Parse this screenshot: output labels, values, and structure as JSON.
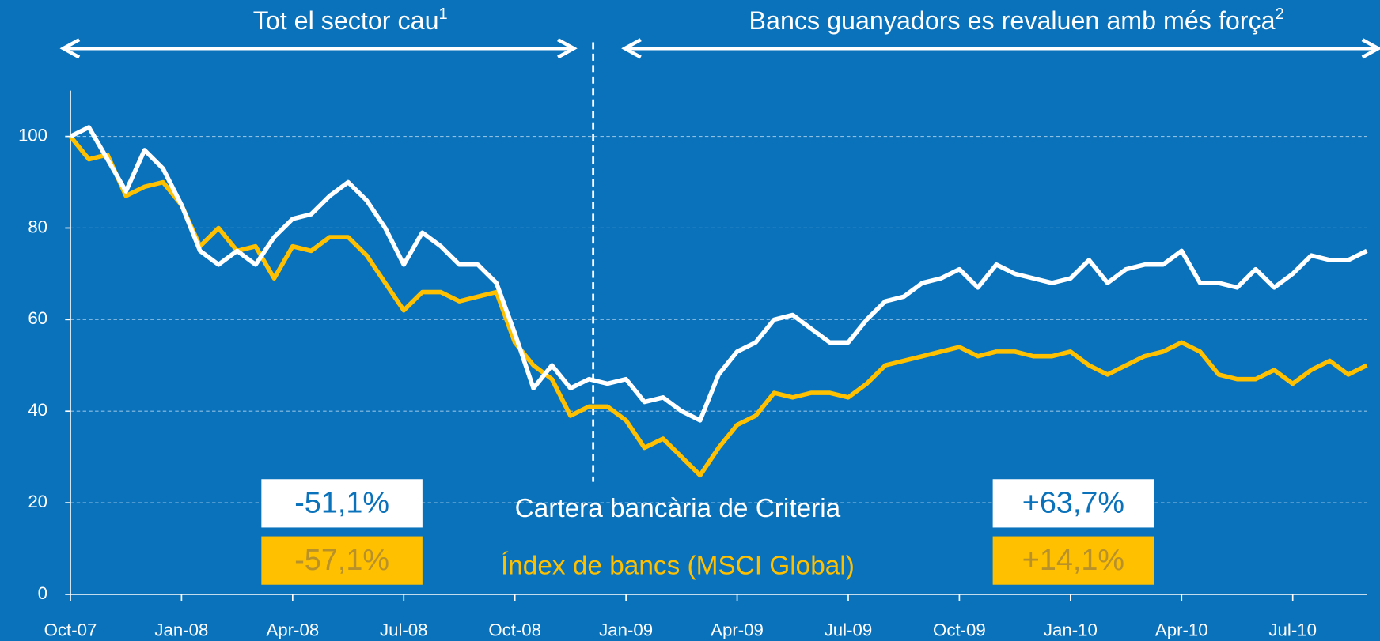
{
  "chart_data": {
    "type": "line",
    "period_labels": [
      {
        "text": "Tot el sector cau",
        "note": "1"
      },
      {
        "text": "Bancs guanyadors es revaluen amb més força",
        "note": "2"
      }
    ],
    "categories": [
      "Oct-07",
      null,
      null,
      null,
      null,
      null,
      "Jan-08",
      null,
      null,
      null,
      null,
      null,
      "Apr-08",
      null,
      null,
      null,
      null,
      null,
      "Jul-08",
      null,
      null,
      null,
      null,
      null,
      "Oct-08",
      null,
      null,
      null,
      null,
      null,
      "Jan-09",
      null,
      null,
      null,
      null,
      null,
      "Apr-09",
      null,
      null,
      null,
      null,
      null,
      "Jul-09",
      null,
      null,
      null,
      null,
      null,
      "Oct-09",
      null,
      null,
      null,
      null,
      null,
      "Jan-10",
      null,
      null,
      null,
      null,
      null,
      "Apr-10",
      null,
      null,
      null,
      null,
      null,
      "Jul-10",
      null,
      null,
      null,
      null
    ],
    "series": [
      {
        "name": "Cartera bancària de Criteria",
        "color": "#ffffff",
        "text_color": "#0a72bb",
        "changes": [
          "-51,1%",
          "+63,7%"
        ],
        "values": [
          100,
          102,
          95,
          88,
          97,
          93,
          85,
          75,
          72,
          75,
          72,
          78,
          82,
          83,
          87,
          90,
          86,
          80,
          72,
          79,
          76,
          72,
          72,
          68,
          57,
          45,
          50,
          45,
          47,
          46,
          47,
          42,
          43,
          40,
          38,
          48,
          53,
          55,
          60,
          61,
          58,
          55,
          55,
          60,
          64,
          65,
          68,
          69,
          71,
          67,
          72,
          70,
          69,
          68,
          69,
          73,
          68,
          71,
          72,
          72,
          75,
          68,
          68,
          67,
          71,
          67,
          70,
          74,
          73,
          73,
          75
        ]
      },
      {
        "name": "Índex de bancs (MSCI Global)",
        "color": "#ffc000",
        "text_color": "#b8912a",
        "changes": [
          "-57,1%",
          "+14,1%"
        ],
        "values": [
          100,
          95,
          96,
          87,
          89,
          90,
          85,
          76,
          80,
          75,
          76,
          69,
          76,
          75,
          78,
          78,
          74,
          68,
          62,
          66,
          66,
          64,
          65,
          66,
          55,
          50,
          47,
          39,
          41,
          41,
          38,
          32,
          34,
          30,
          26,
          32,
          37,
          39,
          44,
          43,
          44,
          44,
          43,
          46,
          50,
          51,
          52,
          53,
          54,
          52,
          53,
          53,
          52,
          52,
          53,
          50,
          48,
          50,
          52,
          53,
          55,
          53,
          48,
          47,
          47,
          49,
          46,
          49,
          51,
          48,
          50
        ]
      }
    ],
    "ylim": [
      0,
      110
    ],
    "yticks": [
      0,
      20,
      40,
      60,
      80,
      100
    ],
    "grid": true
  }
}
